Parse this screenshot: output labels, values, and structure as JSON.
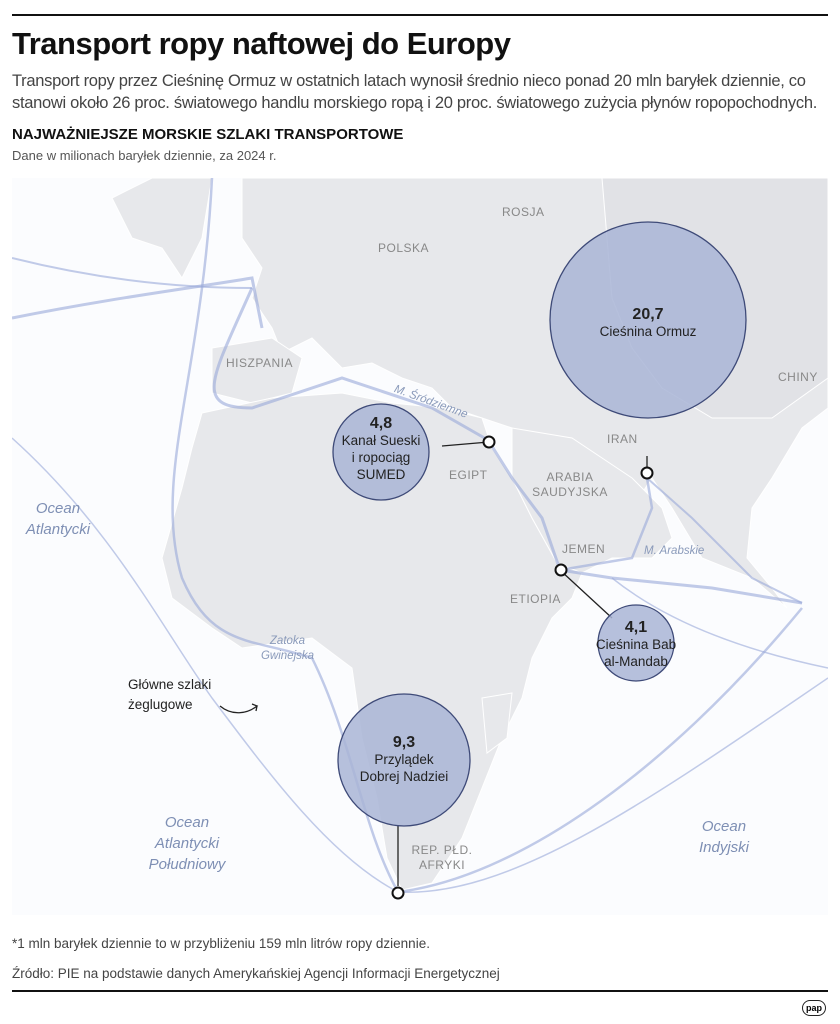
{
  "header": {
    "title": "Transport ropy naftowej do Europy",
    "lead": "Transport ropy przez Cieśninę Ormuz w ostatnich latach wynosił średnio nieco ponad 20 mln baryłek dziennie, co stanowi około 26 proc. światowego handlu morskiego ropą i 20 proc. światowego zużycia płynów ropopochodnych.",
    "section": "NAJWAŻNIEJSZE MORSKIE SZLAKI TRANSPORTOWE",
    "unit": "Dane w milionach baryłek dziennie, za 2024 r."
  },
  "map": {
    "countries": {
      "rosja": "ROSJA",
      "polska": "POLSKA",
      "hiszpania": "HISZPANIA",
      "egipt": "EGIPT",
      "arabia1": "ARABIA",
      "arabia2": "SAUDYJSKA",
      "iran": "IRAN",
      "chiny": "CHINY",
      "jemen": "JEMEN",
      "etiopia": "ETIOPIA",
      "rpa1": "REP. PŁD.",
      "rpa2": "AFRYKI"
    },
    "seas": {
      "srodziemne": "M. Śródziemne",
      "arabskie": "M. Arabskie",
      "zatoka1": "Zatoka",
      "zatoka2": "Gwinejska"
    },
    "oceans": {
      "atl1": "Ocean",
      "atl2": "Atlantycki",
      "atlpd1": "Ocean",
      "atlpd2": "Atlantycki",
      "atlpd3": "Południowy",
      "ind1": "Ocean",
      "ind2": "Indyjski"
    },
    "legend": {
      "line1": "Główne szlaki",
      "line2": "żeglugowe"
    },
    "chokepoints": [
      {
        "value": "20,7",
        "name1": "Cieśnina Ormuz",
        "name2": ""
      },
      {
        "value": "4,8",
        "name1": "Kanał Sueski",
        "name2": "i ropociąg",
        "name3": "SUMED"
      },
      {
        "value": "4,1",
        "name1": "Cieśnina Bab",
        "name2": "al-Mandab"
      },
      {
        "value": "9,3",
        "name1": "Przylądek",
        "name2": "Dobrej Nadziei"
      }
    ],
    "colors": {
      "land": "#e7e8eb",
      "route": "#9aa8d8",
      "bubble": "#a9b5d6",
      "bubble_stroke": "#3e4a78"
    }
  },
  "footer": {
    "note": "*1 mln baryłek dziennie to w przybliżeniu 159 mln litrów ropy dziennie.",
    "source": "Źródło: PIE na podstawie danych Amerykańskiej Agencji Informacji Energetycznej",
    "logo": "pap"
  }
}
